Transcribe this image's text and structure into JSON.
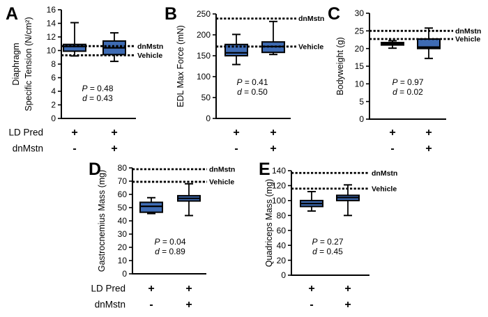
{
  "chart_data": {
    "type": "box",
    "title": "",
    "row_labels": [
      "LD Pred",
      "dnMstn"
    ],
    "colors": {
      "box_fill": "#3E6BB3",
      "line": "#000000",
      "background": "#FFFFFF"
    },
    "panels": [
      {
        "letter": "A",
        "ylabel_lines": [
          "Diaphragm",
          "Specific Tension (N/cm²)"
        ],
        "ylim": [
          0,
          16
        ],
        "ytick_step": 2,
        "ref_lines": [
          {
            "label": "dnMstn",
            "value": 10.65
          },
          {
            "label": "Vehicle",
            "value": 9.3
          }
        ],
        "boxes": [
          {
            "whisker_low": 9.2,
            "q1": 9.9,
            "median": 10.6,
            "q3": 10.9,
            "whisker_high": 14.1
          },
          {
            "whisker_low": 8.4,
            "q1": 9.4,
            "median": 10.4,
            "q3": 11.4,
            "whisker_high": 12.6
          }
        ],
        "group_symbols": {
          "ld_pred": [
            "+",
            "+"
          ],
          "dnmstn": [
            "-",
            "+"
          ]
        },
        "stats": {
          "P": "0.48",
          "d": "0.43"
        },
        "show_row_labels": true
      },
      {
        "letter": "B",
        "ylabel_lines": [
          "EDL Max Force (mN)"
        ],
        "ylim": [
          0,
          250
        ],
        "ytick_step": 50,
        "ref_lines": [
          {
            "label": "dnMstn",
            "value": 239
          },
          {
            "label": "Vehicle",
            "value": 172
          }
        ],
        "boxes": [
          {
            "whisker_low": 129,
            "q1": 150,
            "median": 157,
            "q3": 177,
            "whisker_high": 201
          },
          {
            "whisker_low": 153,
            "q1": 158,
            "median": 172,
            "q3": 183,
            "whisker_high": 232
          }
        ],
        "group_symbols": {
          "ld_pred": [
            "+",
            "+"
          ],
          "dnmstn": [
            "-",
            "+"
          ]
        },
        "stats": {
          "P": "0.41",
          "d": "0.50"
        },
        "show_row_labels": false
      },
      {
        "letter": "C",
        "ylabel_lines": [
          "Bodyweight (g)"
        ],
        "ylim": [
          0,
          30
        ],
        "ytick_step": 5,
        "ref_lines": [
          {
            "label": "dnMstn",
            "value": 25
          },
          {
            "label": "Vehicle",
            "value": 22.7
          }
        ],
        "boxes": [
          {
            "whisker_low": 20.1,
            "q1": 21.0,
            "median": 21.3,
            "q3": 21.7,
            "whisker_high": 22.2
          },
          {
            "whisker_low": 17.2,
            "q1": 20.0,
            "median": 20.4,
            "q3": 22.7,
            "whisker_high": 25.8
          }
        ],
        "group_symbols": {
          "ld_pred": [
            "+",
            "+"
          ],
          "dnmstn": [
            "-",
            "+"
          ]
        },
        "stats": {
          "P": "0.97",
          "d": "0.02"
        },
        "show_row_labels": false
      },
      {
        "letter": "D",
        "ylabel_lines": [
          "Gastrocnemius Mass (mg)"
        ],
        "ylim": [
          0,
          80
        ],
        "ytick_step": 10,
        "ref_lines": [
          {
            "label": "dnMstn",
            "value": 79
          },
          {
            "label": "Vehicle",
            "value": 69.5
          }
        ],
        "boxes": [
          {
            "whisker_low": 45.5,
            "q1": 46.5,
            "median": 51,
            "q3": 54,
            "whisker_high": 57.5
          },
          {
            "whisker_low": 44,
            "q1": 55,
            "median": 57,
            "q3": 59,
            "whisker_high": 68
          }
        ],
        "group_symbols": {
          "ld_pred": [
            "+",
            "+"
          ],
          "dnmstn": [
            "-",
            "+"
          ]
        },
        "stats": {
          "P": "0.04",
          "d": "0.89"
        },
        "show_row_labels": true
      },
      {
        "letter": "E",
        "ylabel_lines": [
          "Quadriceps Mass (mg)"
        ],
        "ylim": [
          0,
          140
        ],
        "ytick_step": 20,
        "ref_lines": [
          {
            "label": "dnMstn",
            "value": 137
          },
          {
            "label": "Vehicle",
            "value": 116
          }
        ],
        "boxes": [
          {
            "whisker_low": 86,
            "q1": 92,
            "median": 96,
            "q3": 100,
            "whisker_high": 112
          },
          {
            "whisker_low": 80,
            "q1": 100,
            "median": 104,
            "q3": 107,
            "whisker_high": 121
          }
        ],
        "group_symbols": {
          "ld_pred": [
            "+",
            "+"
          ],
          "dnmstn": [
            "-",
            "+"
          ]
        },
        "stats": {
          "P": "0.27",
          "d": "0.45"
        },
        "show_row_labels": false
      }
    ]
  }
}
